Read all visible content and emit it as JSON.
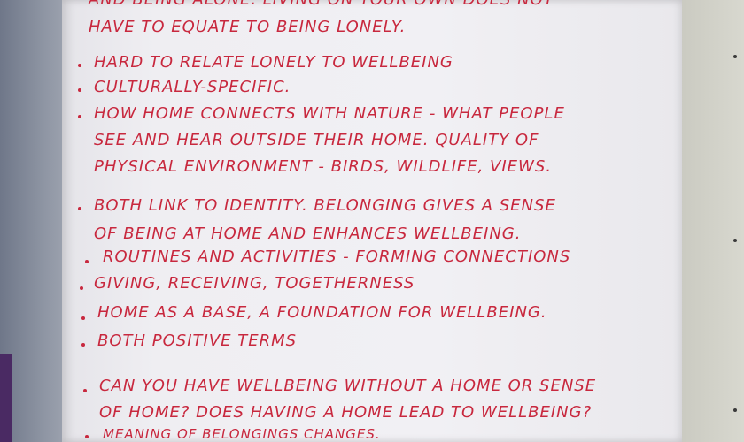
{
  "flipchart": {
    "lines": [
      "And being alone. Living on your own does not",
      "have to equate to being lonely.",
      "Hard to relate lonely to wellbeing",
      "Culturally-specific.",
      "How home connects with nature - what people",
      "see and hear outside their home. Quality of",
      "physical environment - birds, wildlife, views.",
      "Both link to identity. Belonging gives a sense",
      "of being at home and enhances wellbeing.",
      "Routines and activities - forming connections",
      "Giving, receiving, togetherness",
      "Home as a base, a foundation for wellbeing.",
      "Both positive terms",
      "Can you have wellbeing without a home or sense",
      "of home? Does having a home lead to wellbeing?",
      "Meaning of belongings changes."
    ]
  }
}
